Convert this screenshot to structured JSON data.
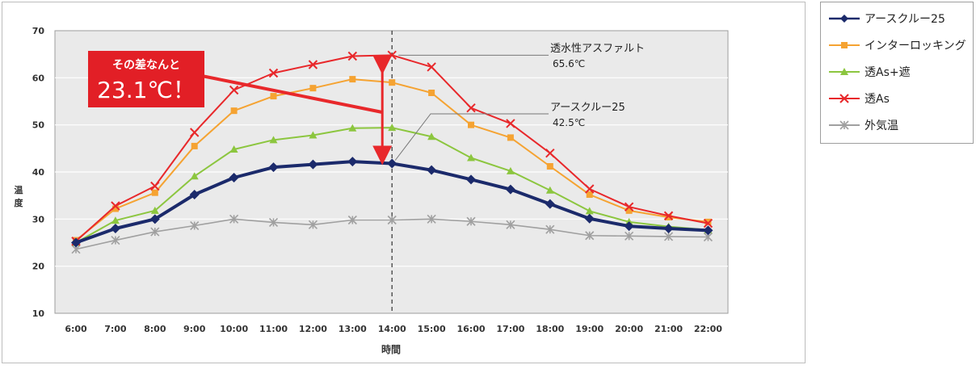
{
  "chart_data": {
    "type": "line",
    "xlabel": "時間",
    "ylabel": "温度",
    "ylim": [
      10,
      70
    ],
    "yticks": [
      10,
      20,
      30,
      40,
      50,
      60,
      70
    ],
    "categories": [
      "6:00",
      "7:00",
      "8:00",
      "9:00",
      "10:00",
      "11:00",
      "12:00",
      "13:00",
      "14:00",
      "15:00",
      "16:00",
      "17:00",
      "18:00",
      "19:00",
      "20:00",
      "21:00",
      "22:00"
    ],
    "grid": true,
    "legend_position": "right",
    "series": [
      {
        "name": "アースクルー25",
        "color": "#1b2a6b",
        "marker": "diamond",
        "values": [
          25.0,
          28.0,
          30.0,
          35.2,
          38.8,
          41.0,
          41.6,
          42.2,
          41.8,
          40.4,
          38.4,
          36.3,
          33.2,
          30.1,
          28.5,
          28.0,
          27.6
        ]
      },
      {
        "name": "インターロッキング",
        "color": "#f5a332",
        "marker": "square",
        "values": [
          25.5,
          32.2,
          35.6,
          45.5,
          53.0,
          56.1,
          57.8,
          59.7,
          59.0,
          56.8,
          50.0,
          47.3,
          41.2,
          35.2,
          31.8,
          30.4,
          29.4
        ]
      },
      {
        "name": "透As+遮",
        "color": "#8cc63f",
        "marker": "triangle",
        "values": [
          25.0,
          29.7,
          31.8,
          39.1,
          44.8,
          46.8,
          47.8,
          49.3,
          49.4,
          47.5,
          43.0,
          40.2,
          36.1,
          31.7,
          29.4,
          28.4,
          27.7
        ]
      },
      {
        "name": "透As",
        "color": "#e8282b",
        "marker": "x",
        "values": [
          25.3,
          32.8,
          37.0,
          48.4,
          57.4,
          61.0,
          62.8,
          64.6,
          64.8,
          62.3,
          53.6,
          50.3,
          44.0,
          36.4,
          32.6,
          30.7,
          29.1
        ]
      },
      {
        "name": "外気温",
        "color": "#a0a0a0",
        "marker": "star",
        "values": [
          23.6,
          25.5,
          27.3,
          28.6,
          30.0,
          29.3,
          28.8,
          29.8,
          29.8,
          30.0,
          29.5,
          28.8,
          27.8,
          26.5,
          26.4,
          26.3,
          26.2
        ]
      }
    ],
    "annotations": {
      "callout_line1": "その差なんと",
      "callout_line2": "23.1℃！",
      "label_a_title": "透水性アスファルト",
      "label_a_value": "65.6℃",
      "label_b_title": "アースクルー25",
      "label_b_value": "42.5℃",
      "dashed_line_at": "14:00"
    }
  }
}
